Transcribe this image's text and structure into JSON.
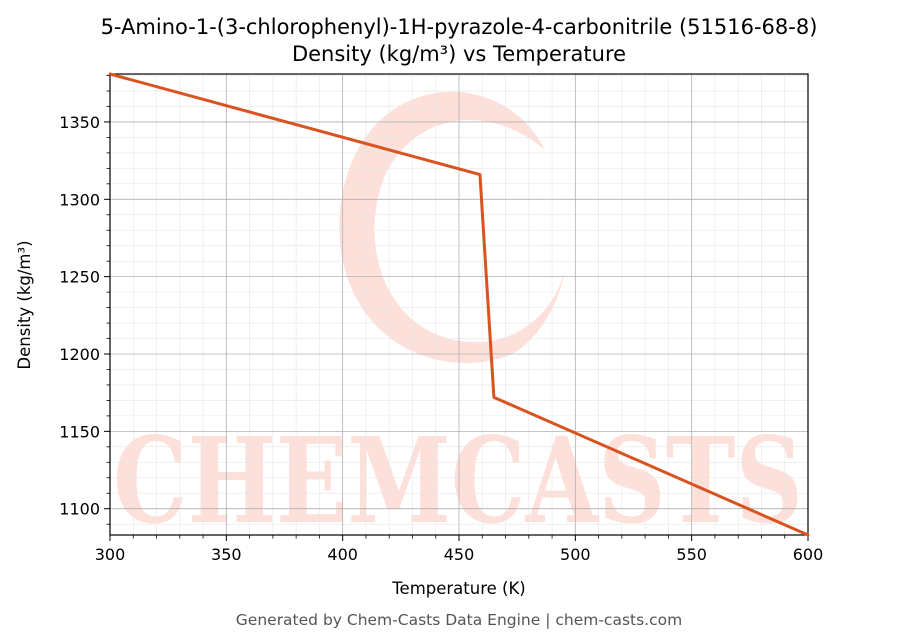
{
  "chart_data": {
    "type": "line",
    "title": "5-Amino-1-(3-chlorophenyl)-1H-pyrazole-4-carbonitrile (51516-68-8)",
    "subtitle": "Density (kg/m³) vs Temperature",
    "xlabel": "Temperature (K)",
    "ylabel": "Density (kg/m³)",
    "xlim": [
      300,
      600
    ],
    "ylim": [
      1083,
      1381
    ],
    "x_ticks": [
      300,
      350,
      400,
      450,
      500,
      550,
      600
    ],
    "y_ticks": [
      1100,
      1150,
      1200,
      1250,
      1300,
      1350
    ],
    "grid": "major and minor",
    "series": [
      {
        "x": [
          300,
          459,
          465,
          600
        ],
        "y": [
          1381,
          1316,
          1172,
          1083
        ]
      }
    ]
  },
  "colors": {
    "line": "#d95320",
    "watermark": "#fde0da",
    "major_grid": "#b0b0b0",
    "minor_grid": "#e6e6e6"
  },
  "watermark_text": "CHEMCASTS",
  "footer": "Generated by Chem-Casts Data Engine | chem-casts.com"
}
